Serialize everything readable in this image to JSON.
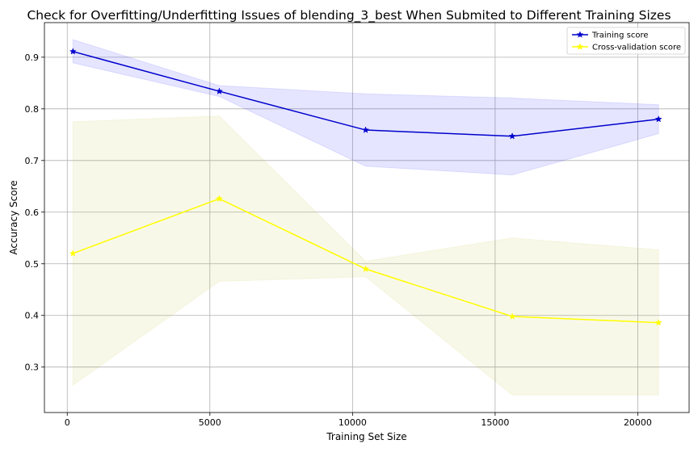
{
  "chart_data": {
    "type": "line",
    "title": "Check for Overfitting/Underfitting Issues of blending_3_best When Submited to Different Training Sizes",
    "xlabel": "Training Set Size",
    "ylabel": "Accuracy Score",
    "xlim": [
      -800,
      21800
    ],
    "ylim": [
      0.212,
      0.967
    ],
    "xticks": [
      0,
      5000,
      10000,
      15000,
      20000
    ],
    "yticks": [
      0.3,
      0.4,
      0.5,
      0.6,
      0.7,
      0.8,
      0.9
    ],
    "xtick_labels": [
      "0",
      "5000",
      "10000",
      "15000",
      "20000"
    ],
    "ytick_labels": [
      "0.3",
      "0.4",
      "0.5",
      "0.6",
      "0.7",
      "0.8",
      "0.9"
    ],
    "grid": true,
    "legend_position": "top-right",
    "x": [
      200,
      5330,
      10460,
      15600,
      20730
    ],
    "series": [
      {
        "name": "Training score",
        "color": "#0000cd",
        "band_color": "#0000ff",
        "marker": "star",
        "values": [
          0.911,
          0.834,
          0.759,
          0.747,
          0.78
        ],
        "upper": [
          0.934,
          0.845,
          0.829,
          0.821,
          0.808
        ],
        "lower": [
          0.889,
          0.824,
          0.689,
          0.672,
          0.752
        ]
      },
      {
        "name": "Cross-validation score",
        "color": "#ffff00",
        "band_color": "#bdb92a",
        "marker": "star",
        "values": [
          0.52,
          0.626,
          0.49,
          0.398,
          0.386
        ],
        "upper": [
          0.775,
          0.786,
          0.505,
          0.55,
          0.527
        ],
        "lower": [
          0.265,
          0.466,
          0.475,
          0.246,
          0.246
        ]
      }
    ]
  }
}
